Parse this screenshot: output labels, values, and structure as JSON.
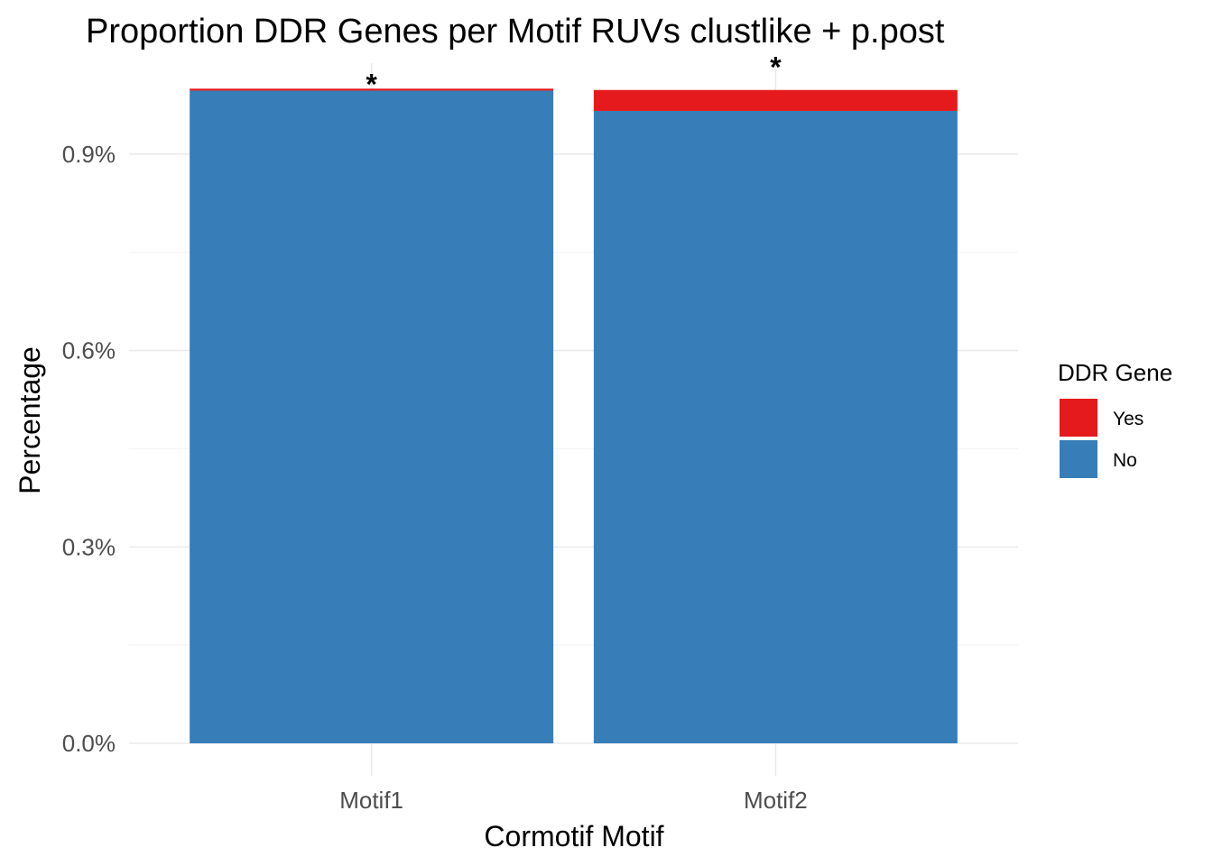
{
  "chart_data": {
    "type": "bar",
    "stacked": true,
    "title": "Proportion DDR Genes per Motif RUVs clustlike + p.post",
    "xlabel": "Cormotif Motif",
    "ylabel": "Percentage",
    "categories": [
      "Motif1",
      "Motif2"
    ],
    "series": [
      {
        "name": "No",
        "values": [
          0.997,
          0.966
        ],
        "color": "#377EB8"
      },
      {
        "name": "Yes",
        "values": [
          0.003,
          0.032
        ],
        "color": "#E41A1C"
      }
    ],
    "annotations": [
      "*",
      "*"
    ],
    "ylim": [
      0,
      1.05
    ],
    "yticks": [
      0,
      0.3,
      0.6,
      0.9
    ],
    "ytick_labels": [
      "0.0%",
      "0.3%",
      "0.6%",
      "0.9%"
    ],
    "grid": true,
    "legend": {
      "title": "DDR Gene",
      "placement": "right",
      "entries": [
        {
          "label": "Yes",
          "color": "#E41A1C"
        },
        {
          "label": "No",
          "color": "#377EB8"
        }
      ]
    }
  }
}
